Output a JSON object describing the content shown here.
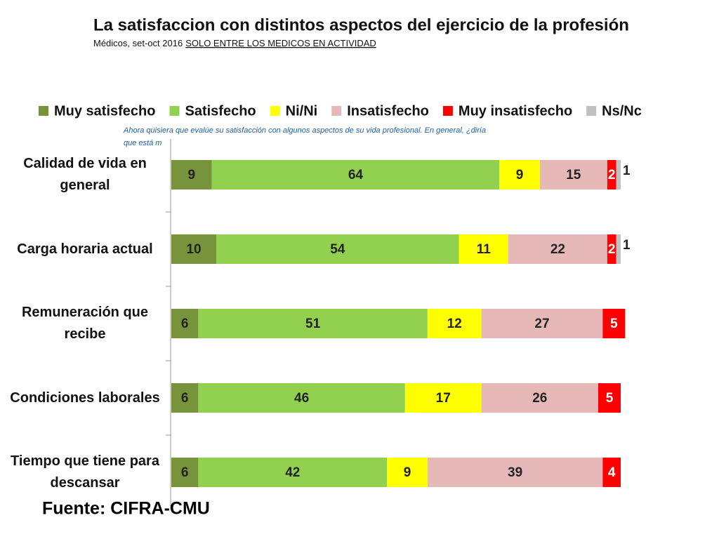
{
  "chart_data": {
    "type": "stacked-bar-horizontal",
    "title": "La satisfaccion con distintos aspectos del ejercicio de la profesión",
    "subtitle": "Médicos, set-oct 2016",
    "subtitle_note": "SOLO ENTRE LOS MEDICOS EN ACTIVIDAD",
    "annotation_lines": [
      "Ahora quisiera que evalúe su satisfacción con algunos aspectos de su vida profesional. En general, ¿diría",
      "que está m"
    ],
    "source": "Fuente: CIFRA-CMU",
    "categories": [
      "Calidad de vida en general",
      "Carga horaria actual",
      "Remuneración que recibe",
      "Condiciones laborales",
      "Tiempo que tiene para descansar"
    ],
    "xlim": [
      0,
      100
    ],
    "legend": "top",
    "series": [
      {
        "name": "Muy satisfecho",
        "color": "#77933c",
        "values": [
          9,
          10,
          6,
          6,
          6
        ]
      },
      {
        "name": "Satisfecho",
        "color": "#92d050",
        "values": [
          64,
          54,
          51,
          46,
          42
        ]
      },
      {
        "name": "Ni/Ni",
        "color": "#ffff00",
        "values": [
          9,
          11,
          12,
          17,
          9
        ]
      },
      {
        "name": "Insatisfecho",
        "color": "#e6b9b8",
        "values": [
          15,
          22,
          27,
          26,
          39
        ]
      },
      {
        "name": "Muy insatisfecho",
        "color": "#ff0000",
        "values": [
          2,
          2,
          5,
          5,
          4
        ]
      },
      {
        "name": "Ns/Nc",
        "color": "#c0c0c0",
        "values": [
          1,
          1,
          0,
          0,
          0
        ]
      }
    ]
  }
}
